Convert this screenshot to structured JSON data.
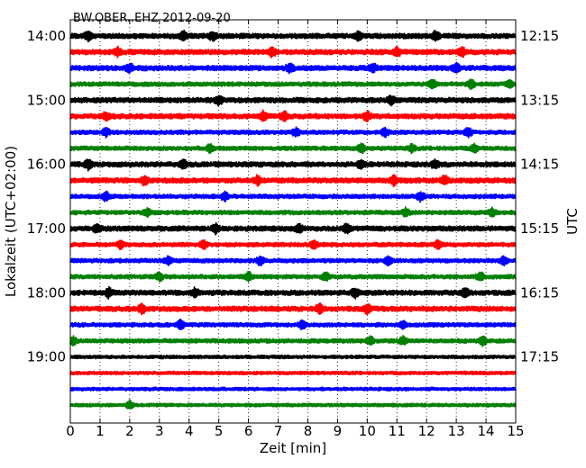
{
  "chart_data": {
    "type": "line",
    "title": "BW.OBER..EHZ 2012-09-20",
    "xlabel": "Zeit  [min]",
    "ylabel_left": "Lokalzeit (UTC+02:00)",
    "ylabel_right": "UTC",
    "xlim": [
      0,
      15
    ],
    "x_ticks": [
      "0",
      "1",
      "2",
      "3",
      "4",
      "5",
      "6",
      "7",
      "8",
      "9",
      "10",
      "11",
      "12",
      "13",
      "14",
      "15"
    ],
    "row_interval_minutes": 15,
    "grid": "vertical dotted at each minute",
    "left_ticks": [
      {
        "row": 0,
        "label": "14:00"
      },
      {
        "row": 4,
        "label": "15:00"
      },
      {
        "row": 8,
        "label": "16:00"
      },
      {
        "row": 12,
        "label": "17:00"
      },
      {
        "row": 16,
        "label": "18:00"
      },
      {
        "row": 20,
        "label": "19:00"
      }
    ],
    "right_ticks": [
      {
        "row": 0,
        "label": "12:15"
      },
      {
        "row": 4,
        "label": "13:15"
      },
      {
        "row": 8,
        "label": "14:15"
      },
      {
        "row": 12,
        "label": "15:15"
      },
      {
        "row": 16,
        "label": "16:15"
      },
      {
        "row": 20,
        "label": "17:15"
      }
    ],
    "traces": [
      {
        "color": "#000000",
        "amp": 3.5,
        "bursts": [
          0.6,
          3.8,
          4.8,
          9.7,
          12.3
        ]
      },
      {
        "color": "#ff0000",
        "amp": 3.5,
        "bursts": [
          1.6,
          6.8,
          11.0,
          13.2
        ]
      },
      {
        "color": "#0000ff",
        "amp": 3.5,
        "bursts": [
          2.0,
          7.4,
          10.2,
          13.0
        ]
      },
      {
        "color": "#008000",
        "amp": 3.0,
        "bursts": [
          12.2,
          13.5,
          14.8
        ]
      },
      {
        "color": "#000000",
        "amp": 3.5,
        "bursts": [
          5.0,
          10.8
        ]
      },
      {
        "color": "#ff0000",
        "amp": 3.5,
        "bursts": [
          1.2,
          6.5,
          7.2,
          10.0
        ]
      },
      {
        "color": "#0000ff",
        "amp": 3.0,
        "bursts": [
          1.2,
          7.6,
          10.6,
          13.4
        ]
      },
      {
        "color": "#008000",
        "amp": 3.0,
        "bursts": [
          4.7,
          9.8,
          11.5,
          13.6
        ]
      },
      {
        "color": "#000000",
        "amp": 3.5,
        "bursts": [
          0.6,
          3.8,
          9.8,
          12.3
        ]
      },
      {
        "color": "#ff0000",
        "amp": 3.5,
        "bursts": [
          2.5,
          6.3,
          10.9,
          12.6
        ]
      },
      {
        "color": "#0000ff",
        "amp": 3.0,
        "bursts": [
          1.2,
          5.2,
          11.8
        ]
      },
      {
        "color": "#008000",
        "amp": 3.0,
        "bursts": [
          2.6,
          11.3,
          14.2
        ]
      },
      {
        "color": "#000000",
        "amp": 3.5,
        "bursts": [
          0.9,
          4.9,
          7.7,
          9.3
        ]
      },
      {
        "color": "#ff0000",
        "amp": 3.0,
        "bursts": [
          1.7,
          4.5,
          8.2,
          12.4
        ]
      },
      {
        "color": "#0000ff",
        "amp": 3.0,
        "bursts": [
          3.3,
          6.4,
          10.7,
          14.6
        ]
      },
      {
        "color": "#008000",
        "amp": 3.0,
        "bursts": [
          3.0,
          6.0,
          8.6,
          13.8
        ]
      },
      {
        "color": "#000000",
        "amp": 3.5,
        "bursts": [
          1.3,
          4.2,
          9.6,
          13.3
        ]
      },
      {
        "color": "#ff0000",
        "amp": 3.5,
        "bursts": [
          2.4,
          8.4,
          10.0
        ]
      },
      {
        "color": "#0000ff",
        "amp": 3.0,
        "bursts": [
          3.7,
          7.8,
          11.2
        ]
      },
      {
        "color": "#008000",
        "amp": 3.0,
        "bursts": [
          0.1,
          10.1,
          11.2,
          13.9
        ]
      },
      {
        "color": "#000000",
        "amp": 2.5,
        "bursts": []
      },
      {
        "color": "#ff0000",
        "amp": 2.5,
        "bursts": []
      },
      {
        "color": "#0000ff",
        "amp": 2.5,
        "bursts": []
      },
      {
        "color": "#008000",
        "amp": 2.5,
        "bursts": [
          2.0
        ]
      }
    ]
  }
}
